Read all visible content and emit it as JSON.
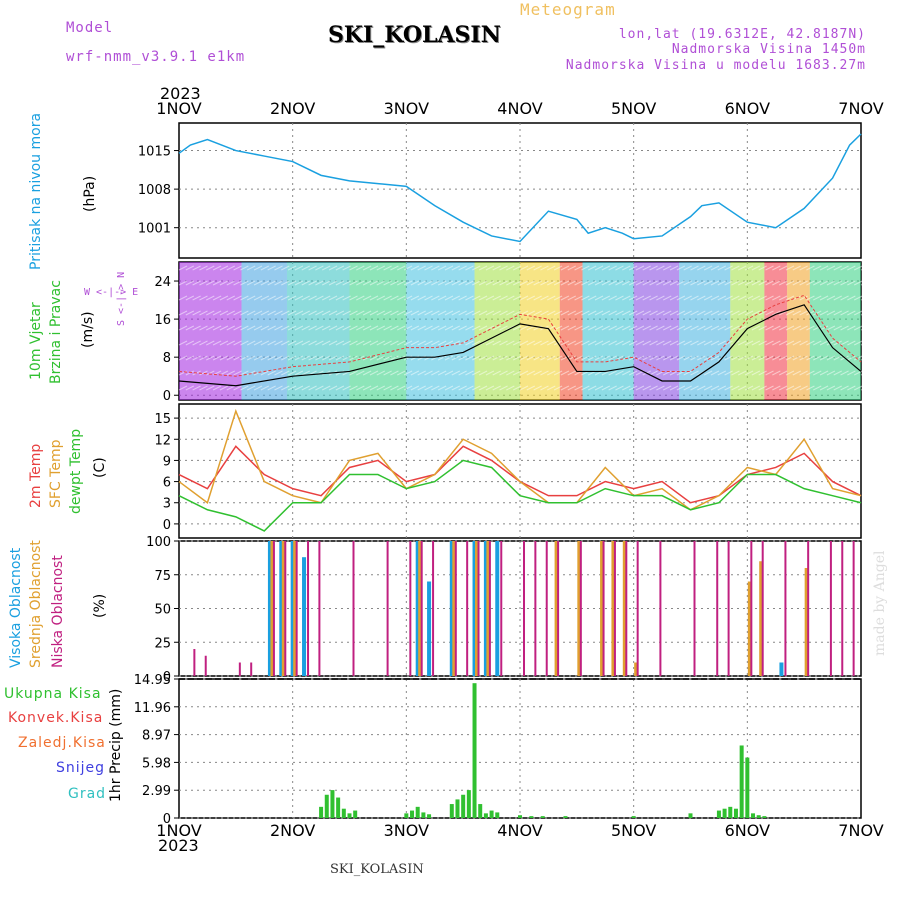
{
  "header": {
    "model_label": "Model",
    "model_value": "wrf-nmm_v3.9.1  e1km",
    "station": "SKI_KOLASIN",
    "meteogram": "Meteogram",
    "lonlat": "lon,lat (19.6312E, 42.8187N)",
    "elevation": "Nadmorska Visina 1450m",
    "model_elevation": "Nadmorska Visina u modelu 1683.27m",
    "year": "2023",
    "footer_station": "SKI_KOLASIN",
    "watermark": "made by Angel"
  },
  "x_axis": {
    "ticks": [
      "1NOV",
      "2NOV",
      "3NOV",
      "4NOV",
      "5NOV",
      "6NOV",
      "7NOV"
    ]
  },
  "colors": {
    "pressure": "#1aa0e0",
    "temp2m": "#e84040",
    "sfc": "#e0a030",
    "dewpt": "#30c030",
    "high_cloud": "#1aa0e0",
    "mid_cloud": "#e0a030",
    "low_cloud": "#c02080",
    "precip": "#30c030",
    "conv": "#e84040",
    "frozen": "#f07030",
    "snow": "#4040e0",
    "hail": "#30c0c0"
  },
  "panels": {
    "pressure": {
      "label_name": "Pritisak na nivou mora",
      "unit": "(hPa)",
      "yticks": [
        "1015",
        "1008",
        "1001"
      ]
    },
    "wind": {
      "label_name": "10m Vjetar",
      "label_name2": "Brzina i Pravac",
      "unit": "(m/s)",
      "yticks": [
        "24",
        "16",
        "8",
        "0"
      ],
      "compass": "W <-|-> E",
      "compass_ns": "S <-|-> N"
    },
    "temp": {
      "label1": "2m Temp",
      "label2": "SFC Temp",
      "label3": "dewpt Temp",
      "unit": "(C)",
      "yticks": [
        "15",
        "12",
        "9",
        "6",
        "3",
        "0"
      ]
    },
    "cloud": {
      "label1": "Visoka Oblacnost",
      "label2": "Srednja Oblacnost",
      "label3": "Niska Oblacnost",
      "unit": "(%)",
      "yticks": [
        "100",
        "75",
        "50",
        "25",
        "0"
      ]
    },
    "precip": {
      "label1": "Ukupna Kisa",
      "label2": "Konvek.Kisa",
      "label3": "Zaledj.Kisa",
      "label4": "Snijeg",
      "label5": "Grad",
      "unit": "1hr Precip (mm)",
      "yticks": [
        "14.95",
        "11.96",
        "8.97",
        "5.98",
        "2.99",
        "0"
      ]
    }
  },
  "chart_data": [
    {
      "type": "line",
      "name": "pressure",
      "ylim": [
        995.5,
        1020
      ],
      "x": [
        0,
        0.1,
        0.25,
        0.5,
        0.75,
        1.0,
        1.25,
        1.5,
        1.75,
        2.0,
        2.25,
        2.5,
        2.75,
        3.0,
        3.25,
        3.5,
        3.6,
        3.75,
        3.9,
        4.0,
        4.25,
        4.5,
        4.6,
        4.75,
        5.0,
        5.25,
        5.5,
        5.75,
        5.9,
        6.0
      ],
      "values": [
        1014.5,
        1016.0,
        1017.0,
        1015.0,
        1014.0,
        1013.0,
        1010.5,
        1009.5,
        1009.0,
        1008.5,
        1005.0,
        1002.0,
        999.5,
        998.5,
        1004.0,
        1002.5,
        1000.0,
        1001.0,
        1000.0,
        999.0,
        999.5,
        1003.0,
        1005.0,
        1005.5,
        1002.0,
        1001.0,
        1004.5,
        1010.0,
        1016.0,
        1018.0
      ]
    },
    {
      "type": "line",
      "name": "wind_speed",
      "ylim": [
        -1,
        28
      ],
      "x": [
        0,
        0.5,
        1.0,
        1.5,
        2.0,
        2.25,
        2.5,
        2.75,
        3.0,
        3.25,
        3.5,
        3.75,
        4.0,
        4.25,
        4.5,
        4.75,
        5.0,
        5.25,
        5.5,
        5.75,
        6.0
      ],
      "values": [
        3,
        2,
        4,
        5,
        8,
        8,
        9,
        12,
        15,
        14,
        5,
        5,
        6,
        3,
        3,
        7,
        14,
        17,
        19,
        10,
        5
      ]
    },
    {
      "type": "line",
      "name": "temperature",
      "ylim": [
        -2,
        17
      ],
      "x": [
        0,
        0.25,
        0.5,
        0.75,
        1.0,
        1.25,
        1.5,
        1.75,
        2.0,
        2.25,
        2.5,
        2.75,
        3.0,
        3.25,
        3.5,
        3.75,
        4.0,
        4.25,
        4.5,
        4.75,
        5.0,
        5.25,
        5.5,
        5.75,
        6.0
      ],
      "series": [
        {
          "name": "2m Temp",
          "values": [
            7,
            5,
            11,
            7,
            5,
            4,
            8,
            9,
            6,
            7,
            11,
            9,
            6,
            4,
            4,
            6,
            5,
            6,
            3,
            4,
            7,
            8,
            10,
            6,
            4
          ]
        },
        {
          "name": "SFC Temp",
          "values": [
            6,
            3,
            16,
            6,
            4,
            3,
            9,
            10,
            5,
            7,
            12,
            10,
            6,
            3,
            3,
            8,
            4,
            5,
            2,
            4,
            8,
            7,
            12,
            5,
            4
          ]
        },
        {
          "name": "dewpt Temp",
          "values": [
            4,
            2,
            1,
            -1,
            3,
            3,
            7,
            7,
            5,
            6,
            9,
            8,
            4,
            3,
            3,
            5,
            4,
            4,
            2,
            3,
            7,
            7,
            5,
            4,
            3
          ]
        }
      ]
    },
    {
      "type": "bar",
      "name": "cloud_cover",
      "ylim": [
        0,
        100
      ],
      "x": [
        0.1,
        0.2,
        0.5,
        0.6,
        0.8,
        0.9,
        1.0,
        1.1,
        1.2,
        1.5,
        1.8,
        2.0,
        2.1,
        2.2,
        2.4,
        2.5,
        2.6,
        2.7,
        2.8,
        3.0,
        3.1,
        3.2,
        3.3,
        3.5,
        3.7,
        3.8,
        3.9,
        4.0,
        4.2,
        4.5,
        4.7,
        4.8,
        5.0,
        5.1,
        5.3,
        5.5,
        5.7,
        5.8,
        5.9
      ],
      "series": [
        {
          "name": "Visoka Oblacnost",
          "values": [
            0,
            0,
            0,
            0,
            100,
            100,
            100,
            88,
            0,
            0,
            0,
            0,
            100,
            70,
            100,
            0,
            100,
            100,
            100,
            0,
            0,
            0,
            0,
            0,
            0,
            0,
            0,
            0,
            0,
            0,
            0,
            0,
            0,
            0,
            10,
            0,
            0,
            0,
            0
          ]
        },
        {
          "name": "Srednja Oblacnost",
          "values": [
            0,
            0,
            0,
            0,
            100,
            100,
            100,
            0,
            0,
            0,
            0,
            0,
            100,
            0,
            100,
            0,
            100,
            100,
            0,
            0,
            0,
            0,
            100,
            100,
            100,
            100,
            100,
            10,
            0,
            0,
            0,
            0,
            70,
            85,
            0,
            80,
            0,
            0,
            0
          ]
        },
        {
          "name": "Niska Oblacnost",
          "values": [
            20,
            15,
            10,
            10,
            100,
            100,
            100,
            100,
            100,
            100,
            100,
            100,
            100,
            100,
            100,
            100,
            100,
            100,
            100,
            100,
            100,
            100,
            100,
            100,
            100,
            100,
            100,
            100,
            100,
            100,
            100,
            100,
            100,
            100,
            100,
            100,
            100,
            100,
            100
          ]
        }
      ]
    },
    {
      "type": "bar",
      "name": "precipitation",
      "ylim": [
        0,
        14.95
      ],
      "x": [
        1.25,
        1.3,
        1.35,
        1.4,
        1.45,
        1.5,
        1.55,
        2.0,
        2.05,
        2.1,
        2.15,
        2.2,
        2.4,
        2.45,
        2.5,
        2.55,
        2.6,
        2.65,
        2.7,
        2.75,
        2.8,
        3.0,
        3.1,
        3.2,
        3.4,
        4.0,
        4.5,
        4.75,
        4.8,
        4.85,
        4.9,
        4.95,
        5.0,
        5.05,
        5.1,
        5.15
      ],
      "series": [
        {
          "name": "Ukupna Kisa",
          "values": [
            1.2,
            2.5,
            3.0,
            2.2,
            1.0,
            0.5,
            0.8,
            0.5,
            0.8,
            1.2,
            0.6,
            0.4,
            1.5,
            2.0,
            2.5,
            3.0,
            14.5,
            1.5,
            0.5,
            0.8,
            0.6,
            0.3,
            0.2,
            0.2,
            0.2,
            0.2,
            0.5,
            0.8,
            1.0,
            1.2,
            1.0,
            7.8,
            6.5,
            0.5,
            0.3,
            0.2
          ]
        }
      ]
    }
  ]
}
